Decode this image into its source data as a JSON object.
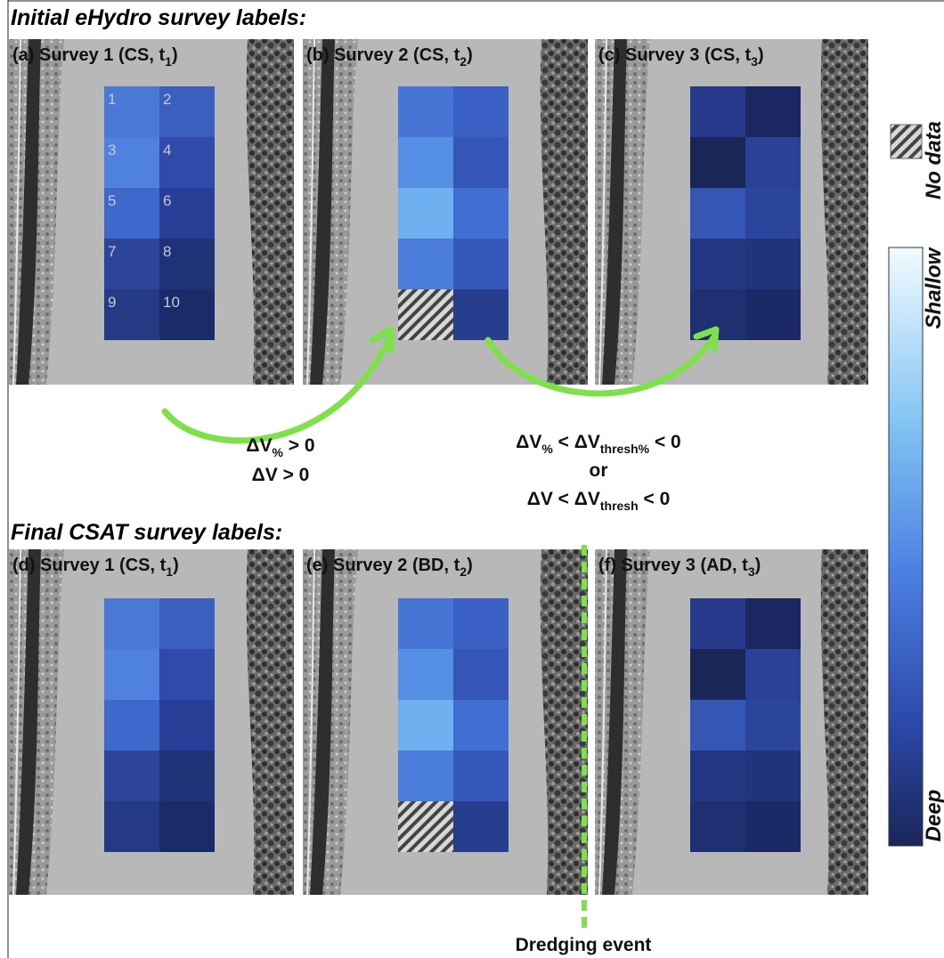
{
  "header": {
    "initial": "Initial eHydro survey labels:",
    "final": "Final CSAT survey labels:"
  },
  "panels": [
    {
      "label": [
        "(a) Survey 1 (CS, t",
        "1",
        ")"
      ],
      "cell_labels": [
        "1",
        "2",
        "3",
        "4",
        "5",
        "6",
        "7",
        "8",
        "9",
        "10"
      ],
      "cell_colors": [
        "#4a78d6",
        "#3a5fc0",
        "#4f82e0",
        "#2f4aa8",
        "#3f68cc",
        "#263e96",
        "#2c4499",
        "#1f3278",
        "#243a85",
        "#1b2a68"
      ]
    },
    {
      "label": [
        "(b) Survey 2 (CS, t",
        "2",
        ")"
      ],
      "cell_colors": [
        "#4775d6",
        "#3a60c6",
        "#5590e4",
        "#3555b8",
        "#6eb0f0",
        "#4070d4",
        "#4a7cdc",
        "#3458bc",
        null,
        "#273e8e"
      ]
    },
    {
      "label": [
        "(c) Survey 3 (CS, t",
        "3",
        ")"
      ],
      "cell_colors": [
        "#26398a",
        "#1a2760",
        "#1a2658",
        "#2a4198",
        "#3556b4",
        "#2b449c",
        "#223681",
        "#21337a",
        "#1f3072",
        "#1b2a66"
      ]
    },
    {
      "label": [
        "(d) Survey 1 (CS, t",
        "1",
        ")"
      ],
      "cell_colors": [
        "#4a78d6",
        "#3a5fc0",
        "#4f82e0",
        "#2f4aa8",
        "#3f68cc",
        "#263e96",
        "#2c4499",
        "#1f3278",
        "#243a85",
        "#1b2a68"
      ]
    },
    {
      "label": [
        "(e) Survey 2 (BD, t",
        "2",
        ")"
      ],
      "cell_colors": [
        "#4775d6",
        "#3a60c6",
        "#5590e4",
        "#3555b8",
        "#6eb0f0",
        "#4070d4",
        "#4a7cdc",
        "#3458bc",
        null,
        "#273e8e"
      ]
    },
    {
      "label": [
        "(f) Survey 3 (AD, t",
        "3",
        ")"
      ],
      "cell_colors": [
        "#26398a",
        "#1a2760",
        "#1a2658",
        "#2a4198",
        "#3556b4",
        "#2b449c",
        "#223681",
        "#21337a",
        "#1f3072",
        "#1b2a66"
      ]
    }
  ],
  "transitions": [
    {
      "lines": [
        [
          "ΔV",
          "%",
          " > 0"
        ],
        [
          "ΔV > 0"
        ]
      ]
    },
    {
      "lines": [
        [
          "ΔV",
          "%",
          " < ΔV",
          "thresh%",
          " < 0"
        ],
        [
          "or"
        ],
        [
          "ΔV < ΔV",
          "thresh",
          " < 0"
        ]
      ]
    }
  ],
  "legend": {
    "no_data": "No data",
    "shallow": "Shallow",
    "deep": "Deep"
  },
  "dredging_event": "Dredging event"
}
